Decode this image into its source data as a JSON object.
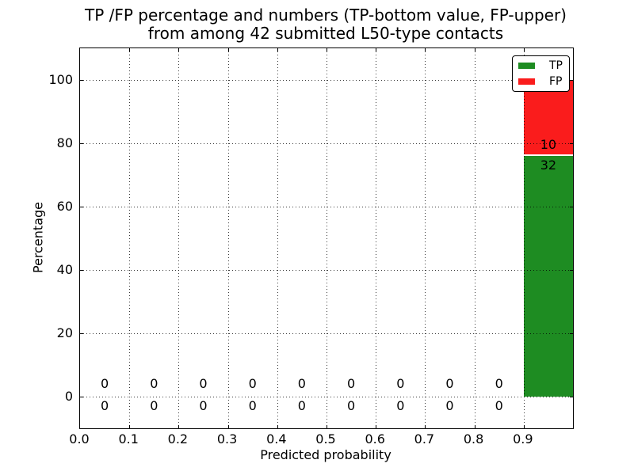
{
  "figure": {
    "title_line1": "TP /FP percentage and numbers (TP-bottom value, FP-upper)",
    "title_line2": "from among 42 submitted L50-type contacts",
    "xlabel": "Predicted probability",
    "ylabel": "Percentage"
  },
  "legend": {
    "position": "upper right",
    "entries": [
      {
        "label": "TP",
        "color": "#1e8c22"
      },
      {
        "label": "FP",
        "color": "#fa1c1c"
      }
    ]
  },
  "style": {
    "tp_color": "#1e8c22",
    "fp_color": "#fa1c1c",
    "separator_color": "#ffffff",
    "grid_style": "dotted",
    "axis_color": "#000000",
    "background": "#ffffff"
  },
  "chart_data": {
    "type": "bar",
    "stacked": true,
    "title": "TP /FP percentage and numbers (TP-bottom value, FP-upper)\nfrom among 42 submitted L50-type contacts",
    "xlabel": "Predicted probability",
    "ylabel": "Percentage",
    "xlim": [
      0.0,
      1.0
    ],
    "ylim": [
      -10,
      110
    ],
    "grid": true,
    "legend_position": "upper right",
    "total_contacts": 42,
    "bin_edges": [
      0.0,
      0.1,
      0.2,
      0.3,
      0.4,
      0.5,
      0.6,
      0.7,
      0.8,
      0.9,
      1.0
    ],
    "bin_centers": [
      0.05,
      0.15,
      0.25,
      0.35,
      0.45,
      0.55,
      0.65,
      0.75,
      0.85,
      0.95
    ],
    "x_tick_labels": [
      "0.0",
      "0.1",
      "0.2",
      "0.3",
      "0.4",
      "0.5",
      "0.6",
      "0.7",
      "0.8",
      "0.9"
    ],
    "x_tick_values": [
      0.0,
      0.1,
      0.2,
      0.3,
      0.4,
      0.5,
      0.6,
      0.7,
      0.8,
      0.9
    ],
    "y_tick_labels": [
      "0",
      "20",
      "40",
      "60",
      "80",
      "100"
    ],
    "y_tick_values": [
      0,
      20,
      40,
      60,
      80,
      100
    ],
    "series": [
      {
        "name": "TP",
        "color": "#1e8c22",
        "counts": [
          0,
          0,
          0,
          0,
          0,
          0,
          0,
          0,
          0,
          32
        ],
        "percent_of_bin": [
          0,
          0,
          0,
          0,
          0,
          0,
          0,
          0,
          0,
          76.19
        ]
      },
      {
        "name": "FP",
        "color": "#fa1c1c",
        "counts": [
          0,
          0,
          0,
          0,
          0,
          0,
          0,
          0,
          0,
          10
        ],
        "percent_of_bin": [
          0,
          0,
          0,
          0,
          0,
          0,
          0,
          0,
          0,
          23.81
        ]
      }
    ],
    "annotations": [
      {
        "x": 0.05,
        "y": 4,
        "text": "0"
      },
      {
        "x": 0.05,
        "y": -3,
        "text": "0"
      },
      {
        "x": 0.15,
        "y": 4,
        "text": "0"
      },
      {
        "x": 0.15,
        "y": -3,
        "text": "0"
      },
      {
        "x": 0.25,
        "y": 4,
        "text": "0"
      },
      {
        "x": 0.25,
        "y": -3,
        "text": "0"
      },
      {
        "x": 0.35,
        "y": 4,
        "text": "0"
      },
      {
        "x": 0.35,
        "y": -3,
        "text": "0"
      },
      {
        "x": 0.45,
        "y": 4,
        "text": "0"
      },
      {
        "x": 0.45,
        "y": -3,
        "text": "0"
      },
      {
        "x": 0.55,
        "y": 4,
        "text": "0"
      },
      {
        "x": 0.55,
        "y": -3,
        "text": "0"
      },
      {
        "x": 0.65,
        "y": 4,
        "text": "0"
      },
      {
        "x": 0.65,
        "y": -3,
        "text": "0"
      },
      {
        "x": 0.75,
        "y": 4,
        "text": "0"
      },
      {
        "x": 0.75,
        "y": -3,
        "text": "0"
      },
      {
        "x": 0.85,
        "y": 4,
        "text": "0"
      },
      {
        "x": 0.85,
        "y": -3,
        "text": "0"
      },
      {
        "x": 0.95,
        "y": 79.5,
        "text": "10"
      },
      {
        "x": 0.95,
        "y": 73,
        "text": "32"
      }
    ]
  }
}
